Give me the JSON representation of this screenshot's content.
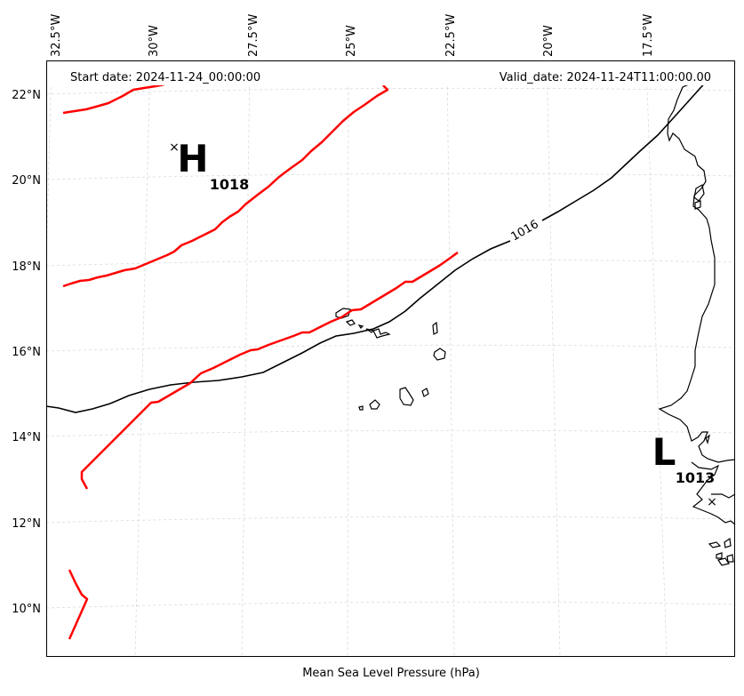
{
  "map": {
    "lon_ticks": [
      "32.5°W",
      "30°W",
      "27.5°W",
      "25°W",
      "22.5°W",
      "20°W",
      "17.5°W"
    ],
    "lat_ticks": [
      "22°N",
      "20°N",
      "18°N",
      "16°N",
      "14°N",
      "12°N",
      "10°N"
    ],
    "start_date": "Start date: 2024-11-24_00:00:00",
    "valid_date": "Valid_date: 2024-11-24T11:00:00.00",
    "caption": "Mean Sea Level Pressure (hPa)",
    "isobar_label": "1016",
    "pressure_centers": [
      {
        "type": "H",
        "value": "1018",
        "marker": "×"
      },
      {
        "type": "L",
        "value": "1013",
        "marker": "×"
      }
    ],
    "colors": {
      "isobar": "#000000",
      "fronts": "#ff0000",
      "coastline": "#000000",
      "gridlines": "#d9d9d9"
    }
  }
}
